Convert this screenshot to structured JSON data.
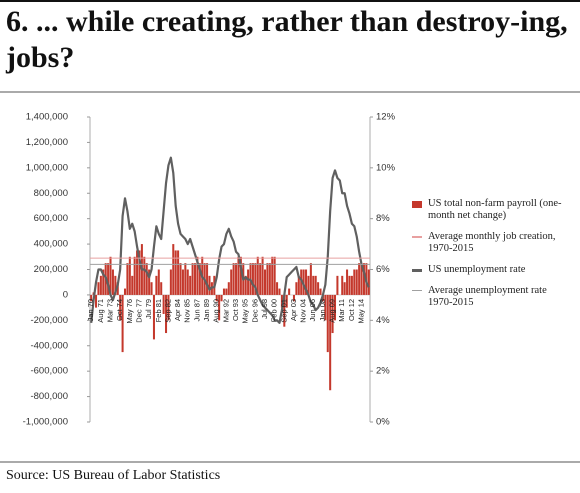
{
  "chart_data": {
    "type": "bar",
    "title": "6. ... while creating, rather than destroy-ing, jobs?",
    "source": "Source: US Bureau of Labor Statistics",
    "categories": [
      "Jan 70",
      null,
      null,
      null,
      "Aug 71",
      null,
      null,
      null,
      "Mar 73",
      null,
      null,
      null,
      "Oct 74",
      null,
      null,
      null,
      "May 76",
      null,
      null,
      null,
      "Dec 77",
      null,
      null,
      null,
      "Jul 79",
      null,
      null,
      null,
      "Feb 81",
      null,
      null,
      null,
      "Sep 82",
      null,
      null,
      null,
      "Apr 84",
      null,
      null,
      null,
      "Nov 85",
      null,
      null,
      null,
      "Jun 87",
      null,
      null,
      null,
      "Jan 89",
      null,
      null,
      null,
      "Aug 90",
      null,
      null,
      null,
      "Mar 92",
      null,
      null,
      null,
      "Oct 93",
      null,
      null,
      null,
      "May 95",
      null,
      null,
      null,
      "Dec 96",
      null,
      null,
      null,
      "Jul 98",
      null,
      null,
      null,
      "Feb 00",
      null,
      null,
      null,
      "Sep 01",
      null,
      null,
      null,
      "Apr 03",
      null,
      null,
      null,
      "Nov 04",
      null,
      null,
      null,
      "Jun 06",
      null,
      null,
      null,
      "Jan 08",
      null,
      null,
      null,
      "Aug 09",
      null,
      null,
      null,
      "Mar 11",
      null,
      null,
      null,
      "Oct 12",
      null,
      null,
      null,
      "May 14",
      null,
      null,
      null
    ],
    "series": [
      {
        "name": "US total non-farm payroll (one-month net change)",
        "type": "bar",
        "color": "#c4382c",
        "values": [
          -50000,
          20000,
          -100000,
          100000,
          150000,
          200000,
          250000,
          250000,
          300000,
          200000,
          150000,
          100000,
          -200000,
          -450000,
          50000,
          250000,
          300000,
          150000,
          300000,
          350000,
          350000,
          400000,
          300000,
          250000,
          200000,
          100000,
          -350000,
          150000,
          200000,
          100000,
          -150000,
          -300000,
          -200000,
          200000,
          400000,
          350000,
          350000,
          250000,
          200000,
          250000,
          200000,
          150000,
          250000,
          250000,
          300000,
          250000,
          300000,
          250000,
          250000,
          150000,
          100000,
          150000,
          -50000,
          -200000,
          -50000,
          50000,
          50000,
          100000,
          200000,
          250000,
          250000,
          300000,
          300000,
          250000,
          150000,
          200000,
          250000,
          250000,
          250000,
          300000,
          250000,
          300000,
          200000,
          250000,
          250000,
          300000,
          300000,
          100000,
          50000,
          -100000,
          -250000,
          -100000,
          50000,
          0,
          -50000,
          100000,
          150000,
          200000,
          200000,
          200000,
          150000,
          250000,
          150000,
          150000,
          100000,
          50000,
          -50000,
          -200000,
          -450000,
          -750000,
          -300000,
          -200000,
          150000,
          0,
          150000,
          100000,
          200000,
          150000,
          150000,
          200000,
          200000,
          250000,
          250000,
          250000,
          250000,
          200000
        ]
      },
      {
        "name": "US unemployment rate",
        "type": "line",
        "axis": "y2",
        "color": "#606060",
        "values": [
          3.9,
          4.8,
          5.5,
          6.0,
          6.0,
          5.8,
          5.7,
          5.4,
          5.0,
          4.8,
          5.1,
          5.4,
          6.0,
          8.1,
          8.8,
          8.3,
          7.6,
          7.8,
          7.5,
          6.9,
          6.4,
          6.0,
          6.0,
          5.9,
          5.7,
          6.0,
          6.9,
          7.7,
          7.4,
          7.2,
          8.3,
          9.4,
          10.1,
          10.4,
          9.8,
          8.5,
          7.8,
          7.4,
          7.3,
          7.2,
          7.0,
          7.2,
          6.9,
          6.6,
          6.3,
          6.0,
          5.7,
          5.6,
          5.4,
          5.2,
          5.3,
          5.3,
          5.7,
          6.4,
          6.9,
          7.0,
          7.4,
          7.6,
          7.3,
          7.1,
          6.7,
          6.6,
          6.1,
          5.6,
          5.7,
          5.6,
          5.6,
          5.4,
          5.3,
          5.0,
          4.8,
          4.6,
          4.5,
          4.4,
          4.3,
          4.2,
          4.0,
          4.0,
          3.9,
          4.4,
          5.0,
          5.7,
          5.8,
          5.9,
          6.0,
          6.1,
          5.7,
          5.6,
          5.4,
          5.2,
          5.0,
          4.7,
          4.6,
          4.4,
          4.5,
          4.7,
          5.0,
          5.4,
          6.5,
          8.3,
          9.6,
          9.9,
          9.6,
          9.5,
          9.0,
          9.0,
          8.5,
          8.2,
          7.8,
          7.7,
          7.3,
          6.7,
          6.2,
          5.9,
          5.5,
          5.3
        ]
      }
    ],
    "reference_lines": [
      {
        "name": "Average monthly job creation, 1970-2015",
        "value": 290000,
        "color": "#e8a0a0"
      },
      {
        "name": "Average unemployment rate 1970-2015",
        "value": 6.2,
        "axis": "y2",
        "color": "#a0a0a0"
      }
    ],
    "ylim": [
      -1000000,
      1400000
    ],
    "yticks": [
      {
        "value": -1000000,
        "label": "-1,000,000"
      },
      {
        "value": -800000,
        "label": "-800,000"
      },
      {
        "value": -600000,
        "label": "-600,000"
      },
      {
        "value": -400000,
        "label": "-400,000"
      },
      {
        "value": -200000,
        "label": "-200,000"
      },
      0,
      {
        "value": 200000,
        "label": "200,000"
      },
      {
        "value": 400000,
        "label": "400,000"
      },
      {
        "value": 600000,
        "label": "600,000"
      },
      {
        "value": 800000,
        "label": "800,000"
      },
      {
        "value": 1000000,
        "label": "1,000,000"
      },
      {
        "value": 1200000,
        "label": "1,200,000"
      },
      {
        "value": 1400000,
        "label": "1,400,000"
      }
    ],
    "y2lim": [
      0,
      12
    ],
    "y2ticks": [
      {
        "value": 0,
        "label": "0%"
      },
      {
        "value": 2,
        "label": "2%"
      },
      {
        "value": 4,
        "label": "4%"
      },
      {
        "value": 6,
        "label": "6%"
      },
      {
        "value": 8,
        "label": "8%"
      },
      {
        "value": 10,
        "label": "10%"
      },
      {
        "value": 12,
        "label": "12%"
      }
    ],
    "grid": false
  }
}
